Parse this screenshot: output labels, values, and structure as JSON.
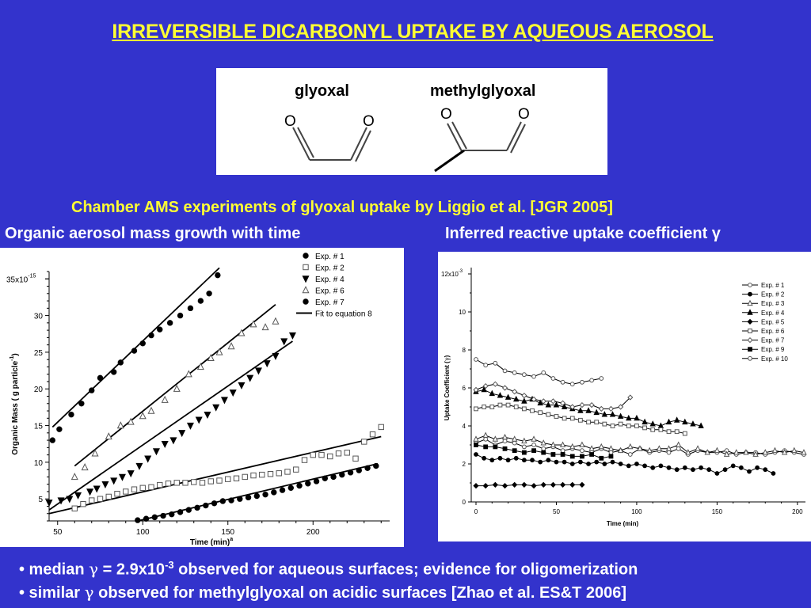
{
  "title": "IRREVERSIBLE DICARBONYL UPTAKE BY AQUEOUS AEROSOL",
  "structures": {
    "glyoxal": "glyoxal",
    "methylglyoxal": "methylglyoxal",
    "atom_O": "O"
  },
  "subtitle": "Chamber AMS experiments of glyoxal uptake by Liggio et al. [JGR 2005]",
  "left_panel_title": "Organic aerosol mass growth with time",
  "right_panel_title": "Inferred reactive uptake coefficient γ",
  "bullets": [
    {
      "pre": "•  median ",
      "sym": "γ",
      "mid": " = 2.9x10",
      "sup": "-3",
      "post": " observed for aqueous surfaces; evidence for oligomerization"
    },
    {
      "pre": "• similar ",
      "sym": "γ",
      "mid": " observed for methylglyoxal on acidic surfaces [Zhao et al. ES&T 2006]",
      "sup": "",
      "post": ""
    }
  ],
  "chart_data": [
    {
      "type": "scatter",
      "xlabel": "Time (min)",
      "xlabel_sup": "a",
      "ylabel": "Organic Mass ( g particle",
      "ylabel_sup": "-1",
      "ylabel_end": ")",
      "y_exponent_base": "35x10",
      "y_exponent_sup": "-15",
      "xlim": [
        45,
        245
      ],
      "ylim": [
        2,
        36
      ],
      "xticks": [
        50,
        100,
        150,
        200
      ],
      "yticks": [
        5,
        10,
        15,
        20,
        25,
        30,
        35
      ],
      "ytick_labels": [
        "5",
        "10",
        "15",
        "20",
        "25",
        "30",
        ""
      ],
      "colors": {
        "filled": "#000000",
        "open": "#777777"
      },
      "series": [
        {
          "name": "Exp. # 1",
          "marker": "circle-filled",
          "x": [
            47,
            51,
            58,
            64,
            70,
            75,
            83,
            87,
            95,
            100,
            105,
            110,
            116,
            122,
            128,
            134,
            139,
            144
          ],
          "y": [
            13,
            14.5,
            16.5,
            18,
            19.8,
            21.5,
            22.3,
            23.6,
            25.2,
            26.2,
            27.3,
            28.1,
            29,
            30,
            31,
            32,
            33,
            35.5
          ]
        },
        {
          "name": "Exp. # 2",
          "marker": "square-open",
          "x": [
            60,
            65,
            70,
            75,
            80,
            85,
            90,
            95,
            100,
            105,
            110,
            115,
            120,
            125,
            130,
            135,
            140,
            145,
            150,
            155,
            160,
            165,
            170,
            175,
            180,
            185,
            190,
            195,
            200,
            205,
            210,
            215,
            220,
            225,
            230,
            235,
            240
          ],
          "y": [
            3.7,
            4.3,
            4.8,
            5,
            5.3,
            5.7,
            6,
            6.3,
            6.5,
            6.6,
            6.9,
            7.1,
            7.2,
            7.2,
            7.3,
            7.2,
            7.4,
            7.5,
            7.7,
            7.8,
            8,
            8.2,
            8.3,
            8.4,
            8.5,
            8.7,
            9,
            10.3,
            11,
            11,
            10.8,
            11.2,
            11.3,
            10.5,
            12.8,
            13.8,
            14.8
          ]
        },
        {
          "name": "Exp. # 4",
          "marker": "triangle-down-filled",
          "x": [
            45,
            52,
            57,
            62,
            69,
            73,
            78,
            83,
            88,
            93,
            98,
            103,
            108,
            113,
            118,
            123,
            128,
            133,
            138,
            143,
            148,
            153,
            158,
            163,
            168,
            173,
            178,
            183,
            188
          ],
          "y": [
            4.5,
            4.8,
            5,
            5.5,
            6,
            6.4,
            7,
            7.5,
            8,
            8.5,
            9.5,
            10.5,
            11.5,
            12.5,
            13,
            14,
            15,
            15.8,
            16.5,
            17.5,
            18.5,
            19.5,
            20.5,
            21.5,
            22.5,
            23.5,
            24.5,
            26.5,
            27.3
          ]
        },
        {
          "name": "Exp. # 6",
          "marker": "triangle-up-open",
          "x": [
            60,
            66,
            72,
            80,
            87,
            93,
            100,
            105,
            113,
            120,
            127,
            134,
            140,
            145,
            152,
            158,
            165,
            172,
            178
          ],
          "y": [
            8,
            9.3,
            11.2,
            13.5,
            15,
            15.5,
            16.3,
            17,
            18.5,
            20,
            22,
            23,
            24.2,
            25,
            25.8,
            27.6,
            28.8,
            28.4,
            29.2
          ]
        },
        {
          "name": "Exp. # 7",
          "marker": "circle-filled",
          "x": [
            97,
            102,
            107,
            112,
            117,
            122,
            127,
            132,
            137,
            142,
            147,
            152,
            157,
            162,
            167,
            172,
            177,
            182,
            187,
            192,
            197,
            202,
            207,
            212,
            217,
            222,
            227,
            232,
            237
          ],
          "y": [
            2.1,
            2.3,
            2.5,
            2.7,
            2.9,
            3.2,
            3.5,
            3.8,
            4.1,
            4.4,
            4.7,
            4.8,
            5,
            5.2,
            5.4,
            5.6,
            5.9,
            6.2,
            6.5,
            6.8,
            7.1,
            7.4,
            7.8,
            8,
            8.3,
            8.6,
            8.9,
            9.2,
            9.5
          ]
        }
      ],
      "fit_label": "Fit to equation 8",
      "fits": [
        {
          "x": [
            47,
            145
          ],
          "y": [
            14.8,
            36.5
          ]
        },
        {
          "x": [
            60,
            178
          ],
          "y": [
            9.5,
            31.5
          ]
        },
        {
          "x": [
            45,
            188
          ],
          "y": [
            3.5,
            26.5
          ]
        },
        {
          "x": [
            45,
            240
          ],
          "y": [
            3,
            13.5
          ]
        },
        {
          "x": [
            97,
            238
          ],
          "y": [
            2,
            9.8
          ]
        }
      ]
    },
    {
      "type": "line",
      "xlabel": "Time (min)",
      "ylabel": "Uptake Coefficient (",
      "ylabel_sym": "γ",
      "ylabel_end": ")",
      "y_exponent_base": "12x10",
      "y_exponent_sup": "-3",
      "xlim": [
        0,
        205
      ],
      "ylim": [
        0,
        12
      ],
      "xticks": [
        0,
        50,
        100,
        150,
        200
      ],
      "yticks": [
        0,
        2,
        4,
        6,
        8,
        10,
        12
      ],
      "ytick_labels": [
        "0",
        "2",
        "4",
        "6",
        "8",
        "10",
        ""
      ],
      "legend_position": "top-right",
      "series": [
        {
          "name": "Exp. # 1",
          "marker": "circle-open",
          "x": [
            0,
            6,
            12,
            18,
            24,
            30,
            36,
            42,
            48,
            54,
            60,
            66,
            72,
            78,
            84,
            90,
            96,
            102,
            108,
            114,
            120,
            126,
            132,
            138,
            144,
            150,
            156,
            162,
            168,
            174,
            180,
            186,
            192,
            198,
            204
          ],
          "y": [
            3.1,
            3.3,
            3,
            3.2,
            3.1,
            2.9,
            3,
            2.8,
            2.9,
            2.7,
            2.8,
            2.7,
            2.6,
            2.8,
            2.6,
            2.7,
            2.5,
            2.8,
            2.6,
            2.7,
            2.6,
            2.8,
            2.5,
            2.7,
            2.6,
            2.6,
            2.7,
            2.5,
            2.6,
            2.6,
            2.5,
            2.6,
            2.7,
            2.6,
            2.5
          ]
        },
        {
          "name": "Exp. # 2",
          "marker": "circle-filled",
          "x": [
            0,
            5,
            10,
            15,
            20,
            25,
            30,
            35,
            40,
            45,
            50,
            55,
            60,
            65,
            70,
            75,
            80,
            85,
            90,
            95,
            100,
            105,
            110,
            115,
            120,
            125,
            130,
            135,
            140,
            145,
            150,
            155,
            160,
            165,
            170,
            175,
            180,
            185
          ],
          "y": [
            2.5,
            2.3,
            2.2,
            2.3,
            2.2,
            2.3,
            2.2,
            2.2,
            2.1,
            2.2,
            2.1,
            2.1,
            2,
            2.1,
            2,
            2.1,
            2,
            2.1,
            2,
            1.9,
            2,
            1.9,
            1.8,
            1.9,
            1.8,
            1.7,
            1.8,
            1.7,
            1.8,
            1.7,
            1.5,
            1.7,
            1.9,
            1.8,
            1.6,
            1.8,
            1.7,
            1.5
          ]
        },
        {
          "name": "Exp. # 3",
          "marker": "triangle-up-open",
          "x": [
            0,
            6,
            12,
            18,
            24,
            30,
            36,
            42,
            48,
            54,
            60,
            66,
            72,
            78,
            84,
            90,
            96,
            102,
            108,
            114,
            120,
            126,
            132,
            138,
            144,
            150,
            156,
            162,
            168,
            174,
            180,
            186,
            192,
            198,
            204
          ],
          "y": [
            3.3,
            3.5,
            3.3,
            3.4,
            3.3,
            3.2,
            3.3,
            3.1,
            3,
            3,
            2.9,
            3,
            2.8,
            2.9,
            2.8,
            2.7,
            2.9,
            2.8,
            2.7,
            2.8,
            2.8,
            3,
            2.6,
            2.8,
            2.6,
            2.7,
            2.5,
            2.6,
            2.6,
            2.5,
            2.6,
            2.7,
            2.6,
            2.7,
            2.6
          ]
        },
        {
          "name": "Exp. # 4",
          "marker": "triangle-up-filled",
          "x": [
            0,
            5,
            10,
            15,
            20,
            25,
            30,
            35,
            40,
            45,
            50,
            55,
            60,
            65,
            70,
            75,
            80,
            85,
            90,
            95,
            100,
            105,
            110,
            115,
            120,
            125,
            130,
            135,
            140
          ],
          "y": [
            5.8,
            5.9,
            5.7,
            5.6,
            5.5,
            5.4,
            5.3,
            5.4,
            5.2,
            5.1,
            5.1,
            5,
            4.9,
            4.8,
            4.8,
            4.7,
            4.6,
            4.6,
            4.5,
            4.4,
            4.4,
            4.2,
            4.1,
            4,
            4.2,
            4.3,
            4.2,
            4.1,
            4
          ]
        },
        {
          "name": "Exp. # 5",
          "marker": "diamond-filled",
          "x": [
            0,
            6,
            12,
            18,
            24,
            30,
            36,
            42,
            48,
            54,
            60,
            66
          ],
          "y": [
            0.85,
            0.85,
            0.9,
            0.85,
            0.9,
            0.9,
            0.85,
            0.9,
            0.9,
            0.9,
            0.9,
            0.9
          ]
        },
        {
          "name": "Exp. # 6",
          "marker": "square-open",
          "x": [
            0,
            5,
            10,
            15,
            20,
            25,
            30,
            35,
            40,
            45,
            50,
            55,
            60,
            65,
            70,
            75,
            80,
            85,
            90,
            95,
            100,
            105,
            110,
            115,
            120,
            125,
            130
          ],
          "y": [
            4.9,
            5,
            5,
            5.1,
            5.1,
            5,
            4.9,
            4.8,
            4.7,
            4.6,
            4.5,
            4.4,
            4.4,
            4.3,
            4.2,
            4.2,
            4.1,
            4,
            4.1,
            4,
            4,
            3.9,
            3.8,
            3.8,
            3.7,
            3.7,
            3.6
          ]
        },
        {
          "name": "Exp. # 7",
          "marker": "diamond-open",
          "x": [
            0,
            6,
            12,
            18,
            24,
            30,
            36,
            42,
            48,
            54,
            60,
            66,
            72,
            78,
            84,
            90,
            96
          ],
          "y": [
            5.9,
            6.1,
            6.2,
            6,
            5.8,
            5.6,
            5.4,
            5.3,
            5.3,
            5.2,
            5,
            5.1,
            5.1,
            4.9,
            4.9,
            5,
            5.5
          ]
        },
        {
          "name": "Exp. # 9",
          "marker": "square-filled",
          "x": [
            0,
            6,
            12,
            18,
            24,
            30,
            36,
            42,
            48,
            54,
            60,
            66,
            72,
            78,
            84
          ],
          "y": [
            3,
            2.9,
            2.9,
            2.8,
            2.7,
            2.6,
            2.7,
            2.6,
            2.5,
            2.5,
            2.4,
            2.4,
            2.5,
            2.3,
            2.4
          ]
        },
        {
          "name": "Exp. # 10",
          "marker": "circle-open",
          "x": [
            0,
            6,
            12,
            18,
            24,
            30,
            36,
            42,
            48,
            54,
            60,
            66,
            72,
            78
          ],
          "y": [
            7.5,
            7.2,
            7.3,
            6.9,
            6.8,
            6.7,
            6.6,
            6.8,
            6.5,
            6.3,
            6.2,
            6.3,
            6.4,
            6.5
          ]
        }
      ]
    }
  ]
}
